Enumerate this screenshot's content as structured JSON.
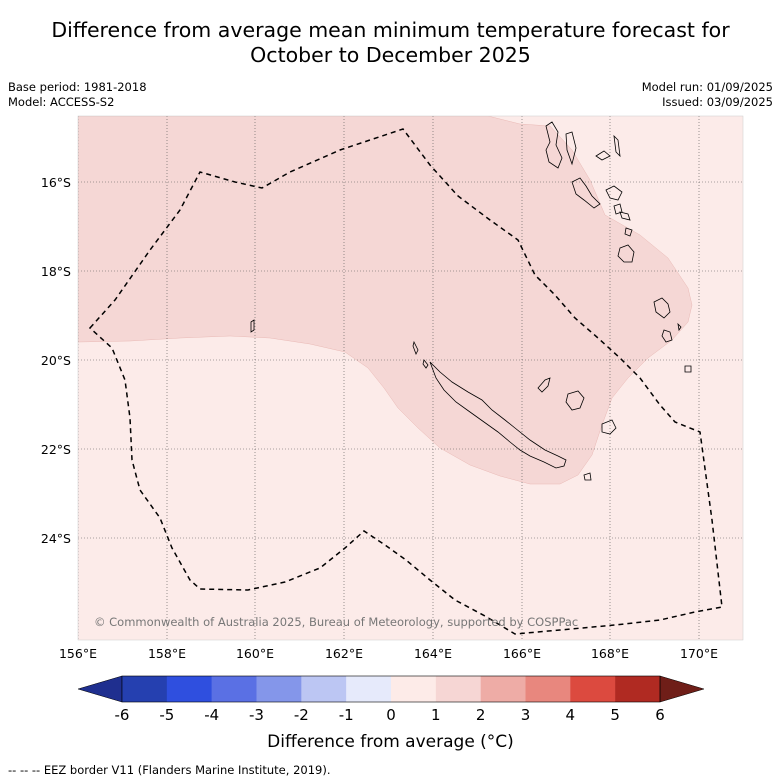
{
  "title_line1": "Difference from average mean minimum temperature forecast for",
  "title_line2": "October to December 2025",
  "base_period": "Base period: 1981-2018",
  "model": "Model: ACCESS-S2",
  "model_run": "Model run: 01/09/2025",
  "issued": "Issued: 03/09/2025",
  "copyright": "© Commonwealth of Australia 2025, Bureau of Meteorology, supported by COSPPac",
  "lat_labels": [
    "16°S",
    "18°S",
    "20°S",
    "22°S",
    "24°S"
  ],
  "lon_labels": [
    "156°E",
    "158°E",
    "160°E",
    "162°E",
    "164°E",
    "166°E",
    "168°E",
    "170°E"
  ],
  "colorbar": {
    "ticks": [
      "-6",
      "-5",
      "-4",
      "-3",
      "-2",
      "-1",
      "0",
      "1",
      "2",
      "3",
      "4",
      "5",
      "6"
    ],
    "colors": [
      "#1f2f8f",
      "#2540b0",
      "#2f4fdf",
      "#5a70e4",
      "#8496ea",
      "#bcc6f3",
      "#e6eafb",
      "#fdebe8",
      "#f6d6d4",
      "#eeaca6",
      "#e8877e",
      "#dc4a3f",
      "#b02a22",
      "#6f1e18"
    ],
    "title": "Difference from average (°C)"
  },
  "legend_note": "--  --  -- EEZ border V11 (Flanders Marine Institute, 2019).",
  "map_colors": {
    "class_0_1": "#fcebe9",
    "class_1_2": "#f5d7d5"
  }
}
